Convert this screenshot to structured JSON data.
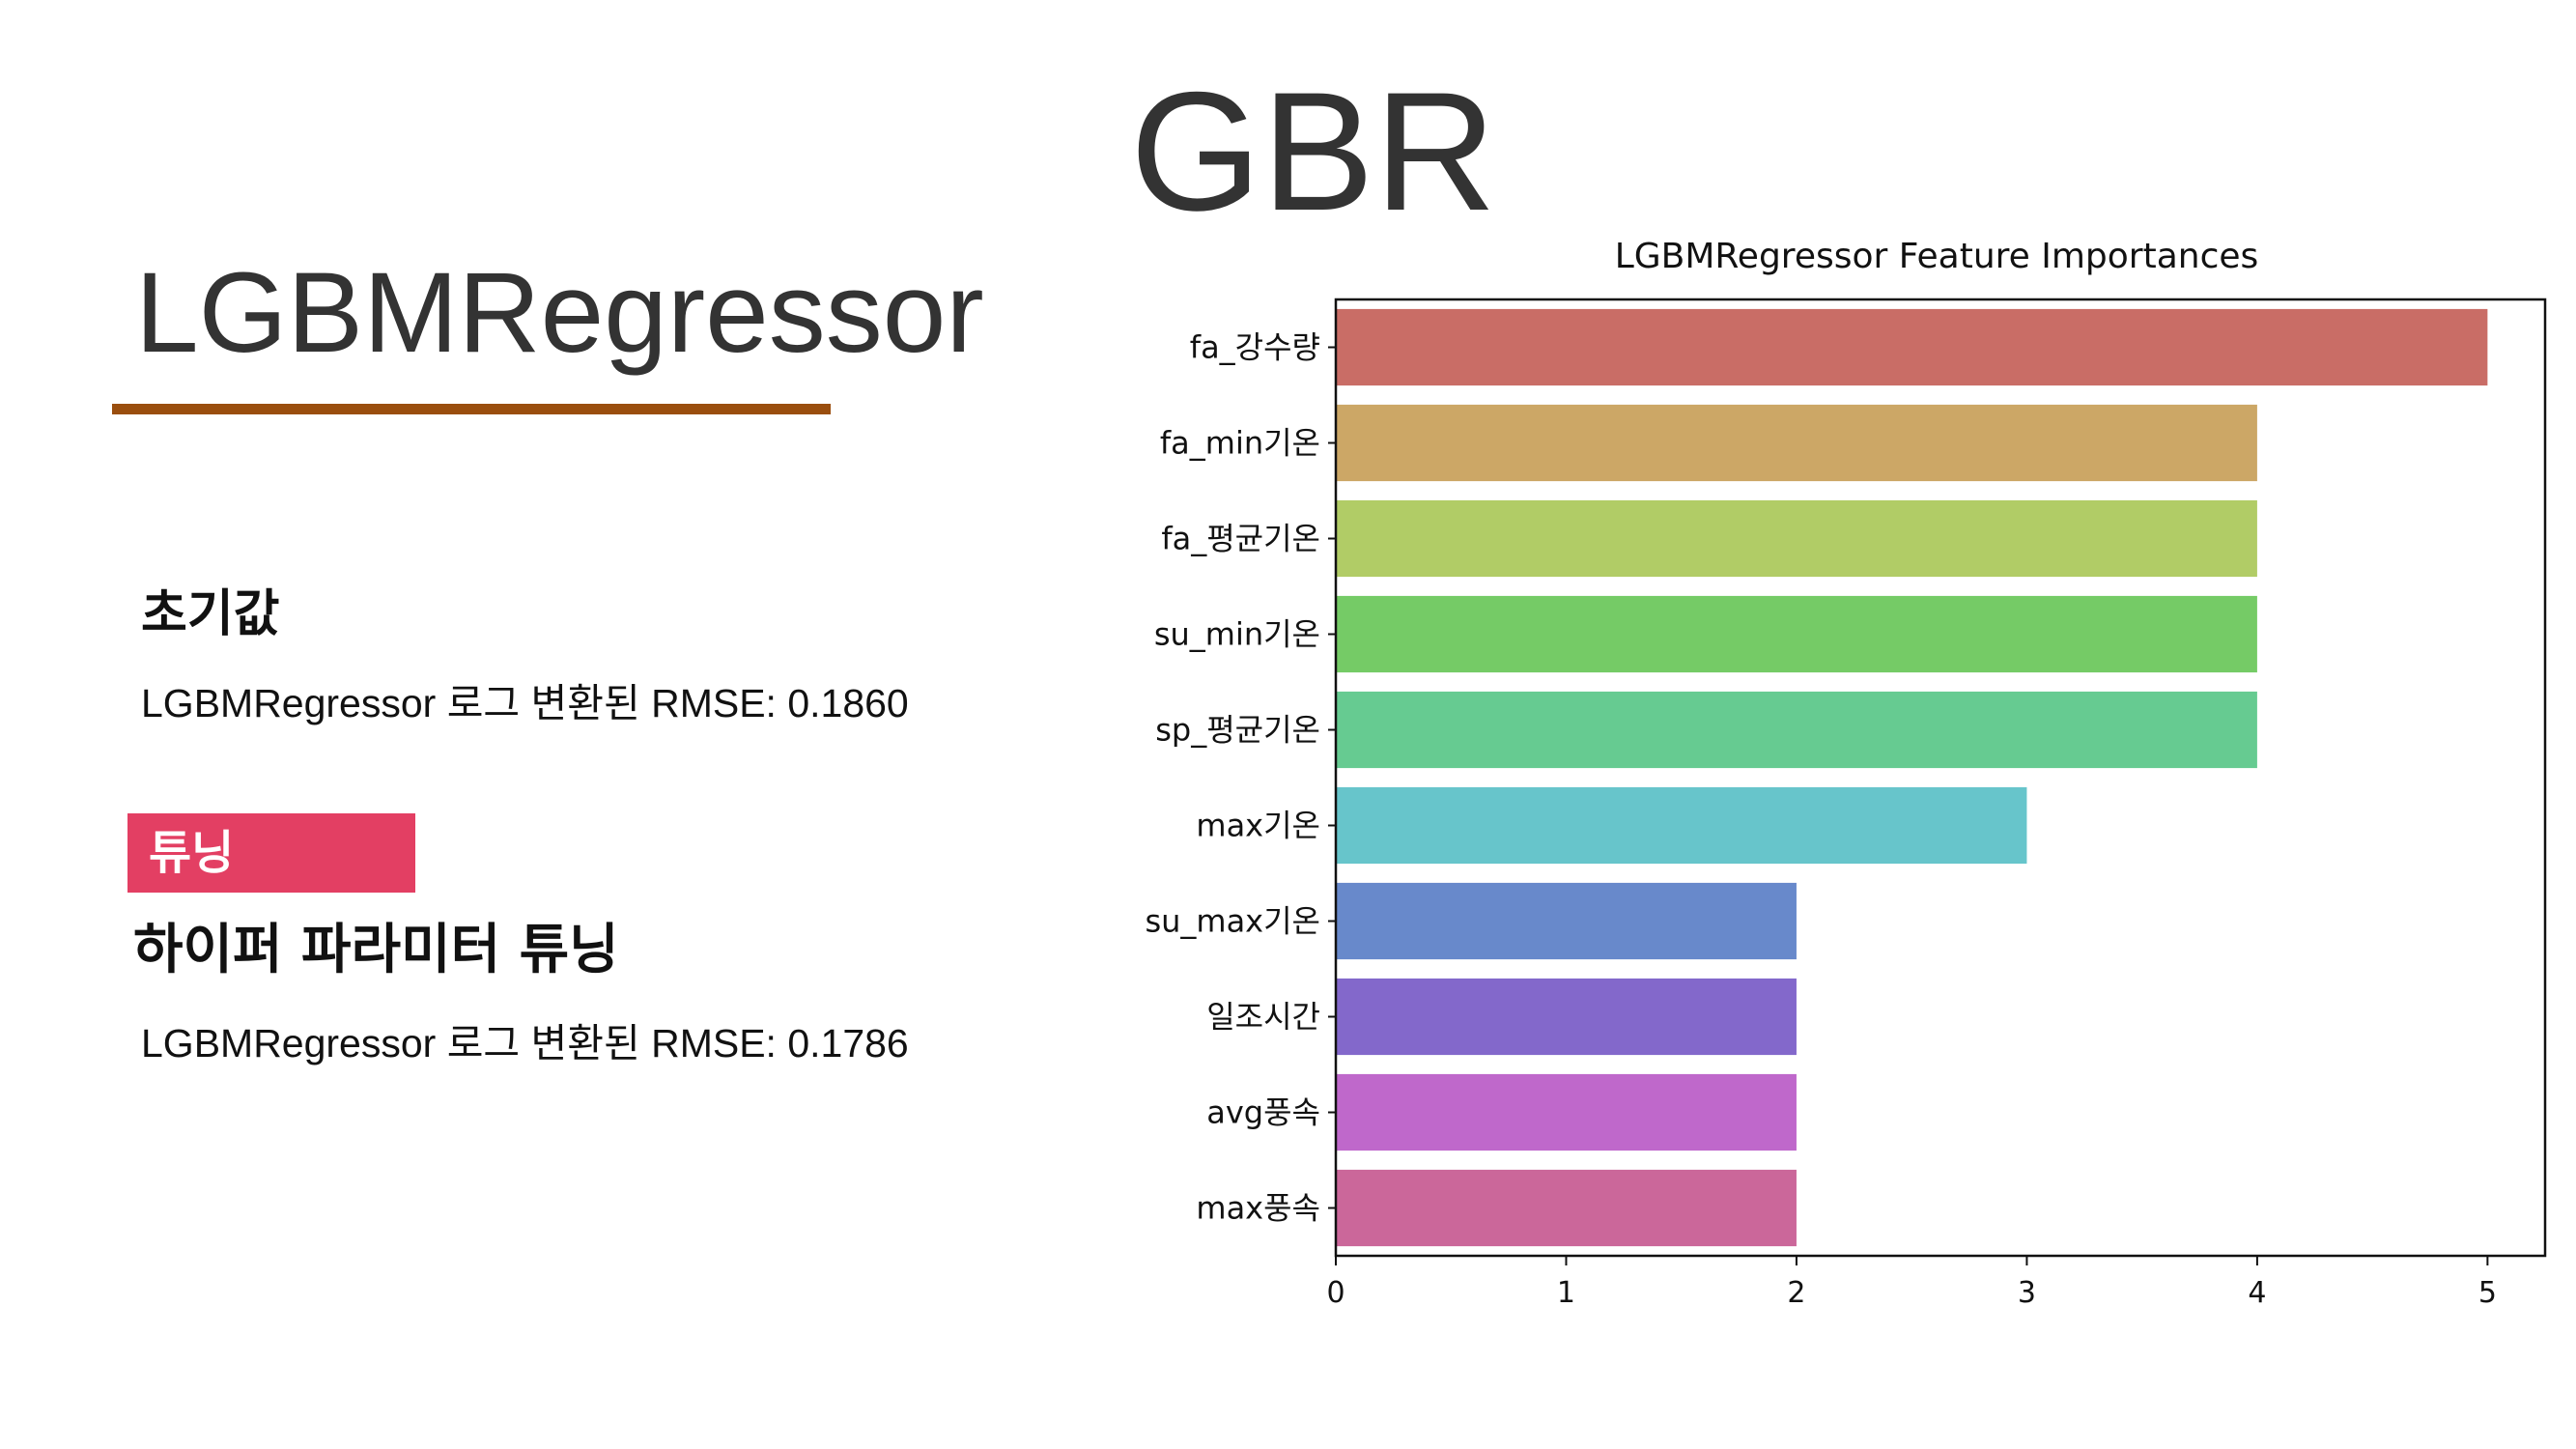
{
  "slide": {
    "header": "GBR",
    "model_title": "LGBMRegressor",
    "accent_color": "#9A4E0E",
    "initial": {
      "heading": "초기값",
      "rmse_text": "LGBMRegressor 로그 변환된 RMSE: 0.1860"
    },
    "tuning": {
      "badge_label": "튜닝",
      "badge_color": "#E33F63",
      "heading": "하이퍼 파라미터 튜닝",
      "rmse_text": "LGBMRegressor 로그 변환된 RMSE: 0.1786"
    }
  },
  "chart_data": {
    "type": "bar",
    "orientation": "horizontal",
    "title": "LGBMRegressor Feature Importances",
    "xlabel": "",
    "ylabel": "",
    "xlim": [
      0,
      5.25
    ],
    "xticks": [
      0,
      1,
      2,
      3,
      4,
      5
    ],
    "grid": false,
    "legend": "none",
    "categories": [
      "fa_강수량",
      "fa_min기온",
      "fa_평균기온",
      "su_min기온",
      "sp_평균기온",
      "max기온",
      "su_max기온",
      "일조시간",
      "avg풍속",
      "max풍속"
    ],
    "values": [
      5,
      4,
      4,
      4,
      4,
      3,
      2,
      2,
      2,
      2
    ],
    "colors": [
      "#C96D66",
      "#CCA766",
      "#B1CC66",
      "#75CB66",
      "#66CB91",
      "#67C5CB",
      "#6889CB",
      "#8368CB",
      "#BF68CB",
      "#CB679A"
    ]
  }
}
